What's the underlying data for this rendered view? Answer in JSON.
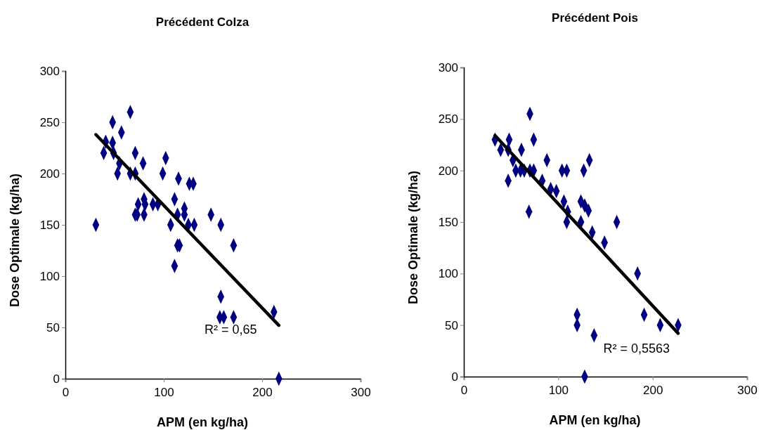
{
  "chart_data": [
    {
      "type": "scatter",
      "title": "Précédent Colza",
      "xlabel": "APM (en kg/ha)",
      "ylabel": "Dose Optimale (kg/ha)",
      "xlim": [
        0,
        300
      ],
      "xticks": [
        0,
        100,
        200,
        300
      ],
      "ylim": [
        0,
        300
      ],
      "yticks": [
        0,
        50,
        100,
        150,
        200,
        250,
        300
      ],
      "grid": false,
      "marker": "diamond",
      "series": [
        {
          "color": "#000080",
          "x": [
            31,
            66,
            48,
            57,
            41,
            48,
            39,
            49,
            71,
            55,
            79,
            102,
            53,
            66,
            71,
            99,
            115,
            126,
            130,
            111,
            80,
            74,
            81,
            89,
            94,
            121,
            121,
            114,
            71,
            73,
            80,
            148,
            107,
            125,
            131,
            158,
            114,
            116,
            171,
            111,
            158,
            157,
            161,
            171,
            212,
            217
          ],
          "values": [
            150,
            260,
            250,
            240,
            231,
            230,
            220,
            220,
            220,
            210,
            210,
            215,
            200,
            200,
            200,
            200,
            195,
            190,
            190,
            175,
            175,
            170,
            170,
            170,
            170,
            166,
            160,
            160,
            160,
            160,
            160,
            160,
            150,
            150,
            150,
            150,
            130,
            130,
            130,
            110,
            80,
            60,
            60,
            60,
            65,
            0
          ]
        },
        {
          "type": "line",
          "color": "#000000",
          "marker": "none",
          "line_style": "solid",
          "x": [
            31,
            217
          ],
          "values": [
            238,
            52
          ]
        }
      ],
      "annotations": [
        "R² = 0,65"
      ]
    },
    {
      "type": "scatter",
      "title": "Précédent Pois",
      "xlabel": "APM (en kg/ha)",
      "ylabel": "Dose Optimale (kg/ha)",
      "xlim": [
        0,
        300
      ],
      "xticks": [
        0,
        100,
        200,
        300
      ],
      "ylim": [
        0,
        300
      ],
      "yticks": [
        0,
        50,
        100,
        150,
        200,
        250,
        300
      ],
      "grid": false,
      "marker": "diamond",
      "series": [
        {
          "color": "#000080",
          "x": [
            70,
            33,
            48,
            74,
            39,
            47,
            61,
            52,
            88,
            133,
            55,
            60,
            64,
            70,
            74,
            104,
            109,
            127,
            47,
            83,
            92,
            98,
            106,
            124,
            128,
            132,
            110,
            69,
            109,
            124,
            162,
            136,
            149,
            184,
            120,
            120,
            138,
            128,
            191,
            208,
            227
          ],
          "values": [
            255,
            230,
            230,
            230,
            220,
            220,
            220,
            210,
            210,
            210,
            200,
            200,
            200,
            200,
            200,
            200,
            200,
            200,
            190,
            190,
            182,
            180,
            170,
            170,
            166,
            161,
            160,
            160,
            150,
            150,
            150,
            140,
            130,
            100,
            60,
            50,
            40,
            0,
            60,
            50,
            50
          ]
        },
        {
          "type": "line",
          "color": "#000000",
          "marker": "none",
          "line_style": "solid",
          "x": [
            33,
            227
          ],
          "values": [
            234,
            42
          ]
        }
      ],
      "annotations": [
        "R² = 0,5563"
      ]
    }
  ]
}
